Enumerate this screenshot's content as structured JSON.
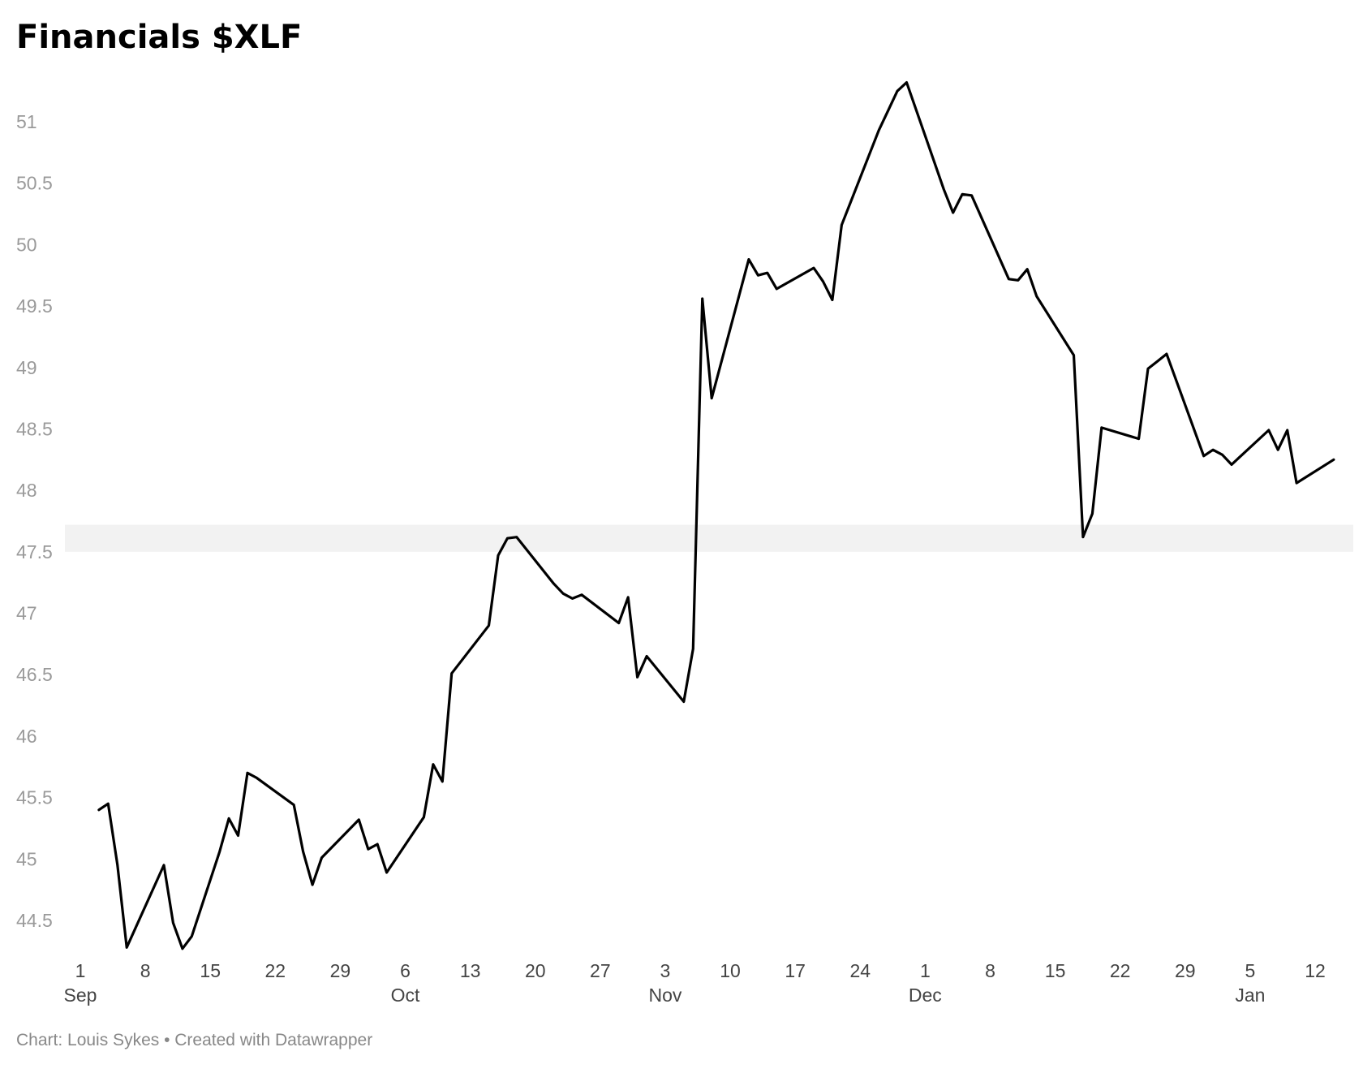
{
  "title": "Financials $XLF",
  "footer": "Chart: Louis Sykes • Created with Datawrapper",
  "colors": {
    "line": "#000000",
    "band": "#f2f2f2",
    "ytick": "#9a9a9a",
    "xtick": "#444444",
    "footer": "#888888"
  },
  "chart_data": {
    "type": "line",
    "title": "Financials $XLF",
    "xlabel": "",
    "ylabel": "",
    "ylim": [
      44.2,
      51.5
    ],
    "grid": false,
    "highlight_band": [
      47.5,
      47.72
    ],
    "y_ticks": [
      "44.5",
      "45",
      "45.5",
      "46",
      "46.5",
      "47",
      "47.5",
      "48",
      "48.5",
      "49",
      "49.5",
      "50",
      "50.5",
      "51"
    ],
    "x_ticks": [
      {
        "date": "2020-09-01",
        "day": "1",
        "month": "Sep"
      },
      {
        "date": "2020-09-08",
        "day": "8",
        "month": ""
      },
      {
        "date": "2020-09-15",
        "day": "15",
        "month": ""
      },
      {
        "date": "2020-09-22",
        "day": "22",
        "month": ""
      },
      {
        "date": "2020-09-29",
        "day": "29",
        "month": ""
      },
      {
        "date": "2020-10-06",
        "day": "6",
        "month": "Oct"
      },
      {
        "date": "2020-10-13",
        "day": "13",
        "month": ""
      },
      {
        "date": "2020-10-20",
        "day": "20",
        "month": ""
      },
      {
        "date": "2020-10-27",
        "day": "27",
        "month": ""
      },
      {
        "date": "2020-11-03",
        "day": "3",
        "month": "Nov"
      },
      {
        "date": "2020-11-10",
        "day": "10",
        "month": ""
      },
      {
        "date": "2020-11-17",
        "day": "17",
        "month": ""
      },
      {
        "date": "2020-11-24",
        "day": "24",
        "month": ""
      },
      {
        "date": "2020-12-01",
        "day": "1",
        "month": "Dec"
      },
      {
        "date": "2020-12-08",
        "day": "8",
        "month": ""
      },
      {
        "date": "2020-12-15",
        "day": "15",
        "month": ""
      },
      {
        "date": "2020-12-22",
        "day": "22",
        "month": ""
      },
      {
        "date": "2020-12-29",
        "day": "29",
        "month": ""
      },
      {
        "date": "2021-01-05",
        "day": "5",
        "month": "Jan"
      },
      {
        "date": "2021-01-12",
        "day": "12",
        "month": ""
      }
    ],
    "series": [
      {
        "x": [
          "2020-09-03",
          "2020-09-04",
          "2020-09-05",
          "2020-09-06",
          "2020-09-10",
          "2020-09-11",
          "2020-09-12",
          "2020-09-13",
          "2020-09-16",
          "2020-09-17",
          "2020-09-18",
          "2020-09-19",
          "2020-09-20",
          "2020-09-24",
          "2020-09-25",
          "2020-09-26",
          "2020-09-27",
          "2020-10-01",
          "2020-10-02",
          "2020-10-03",
          "2020-10-04",
          "2020-10-08",
          "2020-10-09",
          "2020-10-10",
          "2020-10-11",
          "2020-10-15",
          "2020-10-16",
          "2020-10-17",
          "2020-10-18",
          "2020-10-22",
          "2020-10-23",
          "2020-10-24",
          "2020-10-25",
          "2020-10-29",
          "2020-10-30",
          "2020-10-31",
          "2020-11-01",
          "2020-11-05",
          "2020-11-06",
          "2020-11-07",
          "2020-11-08",
          "2020-11-12",
          "2020-11-13",
          "2020-11-14",
          "2020-11-15",
          "2020-11-19",
          "2020-11-20",
          "2020-11-21",
          "2020-11-22",
          "2020-11-26",
          "2020-11-27",
          "2020-11-28",
          "2020-11-29",
          "2020-12-03",
          "2020-12-04",
          "2020-12-05",
          "2020-12-06",
          "2020-12-10",
          "2020-12-11",
          "2020-12-12",
          "2020-12-13",
          "2020-12-17",
          "2020-12-18",
          "2020-12-19",
          "2020-12-20",
          "2020-12-24",
          "2020-12-25",
          "2020-12-26",
          "2020-12-27",
          "2020-12-31",
          "2021-01-01",
          "2021-01-02",
          "2021-01-03",
          "2021-01-07",
          "2021-01-08",
          "2021-01-09",
          "2021-01-10",
          "2021-01-14"
        ],
        "y": [
          45.4,
          45.45,
          44.95,
          44.28,
          44.95,
          44.48,
          44.27,
          44.37,
          45.06,
          45.33,
          45.19,
          45.7,
          45.66,
          45.44,
          45.06,
          44.79,
          45.01,
          45.32,
          45.08,
          45.12,
          44.89,
          45.34,
          45.77,
          45.63,
          46.51,
          46.9,
          47.47,
          47.61,
          47.62,
          47.24,
          47.16,
          47.12,
          47.15,
          46.92,
          47.13,
          46.48,
          46.65,
          46.28,
          46.71,
          49.56,
          48.75,
          49.88,
          49.75,
          49.77,
          49.64,
          49.81,
          49.7,
          49.55,
          50.16,
          50.93,
          51.09,
          51.25,
          51.32,
          50.45,
          50.26,
          50.41,
          50.4,
          49.72,
          49.71,
          49.8,
          49.58,
          49.1,
          47.62,
          47.81,
          48.51,
          48.42,
          48.99,
          49.05,
          49.11,
          48.28,
          48.33,
          48.29,
          48.21,
          48.49,
          48.33,
          48.49,
          48.06,
          48.25
        ]
      }
    ]
  }
}
